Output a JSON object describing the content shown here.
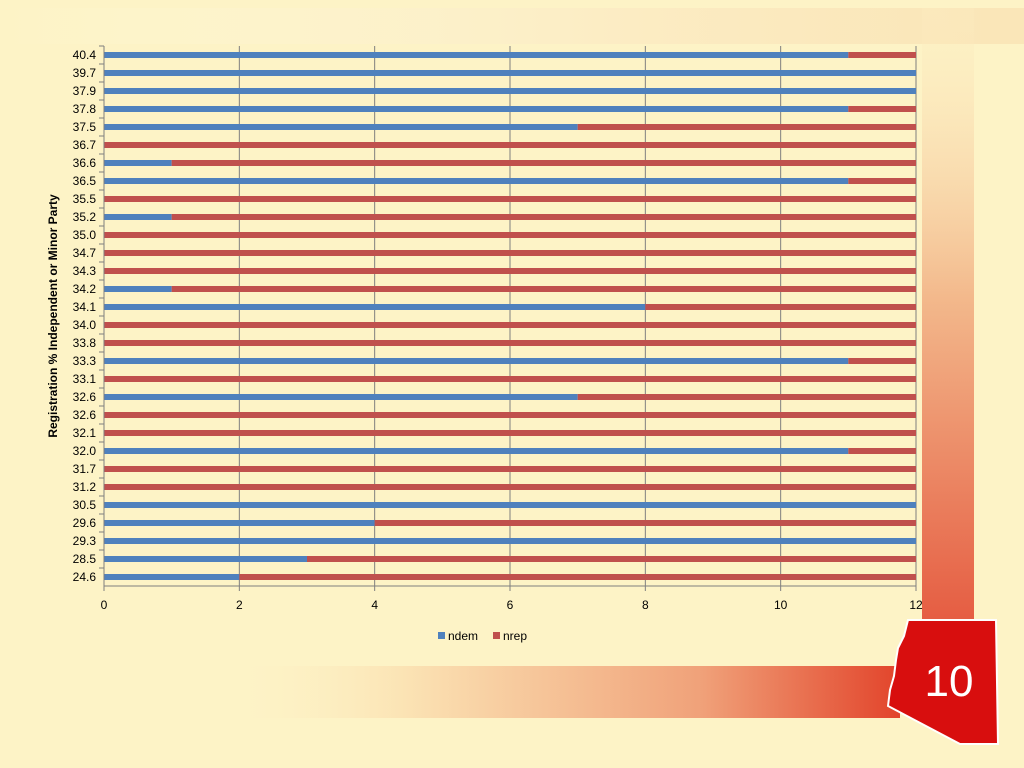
{
  "slide": {
    "page_number": "10",
    "colors": {
      "accent_red": "#e0341f",
      "badge_red": "#d80e0e",
      "background": "#fdf2c2"
    }
  },
  "chart_data": {
    "type": "bar",
    "orientation": "horizontal",
    "stacked": true,
    "ylabel": "Registration % Independent or Minor Party",
    "categories": [
      "40.4",
      "39.7",
      "37.9",
      "37.8",
      "37.5",
      "36.7",
      "36.6",
      "36.5",
      "35.5",
      "35.2",
      "35.0",
      "34.7",
      "34.3",
      "34.2",
      "34.1",
      "34.0",
      "33.8",
      "33.3",
      "33.1",
      "32.6",
      "32.6",
      "32.1",
      "32.0",
      "31.7",
      "31.2",
      "30.5",
      "29.6",
      "29.3",
      "28.5",
      "24.6"
    ],
    "series": [
      {
        "name": "ndem",
        "color": "#4f81bd",
        "values": [
          11,
          12,
          12,
          11,
          7,
          0,
          1,
          11,
          0,
          1,
          0,
          0,
          0,
          1,
          8,
          0,
          0,
          11,
          0,
          7,
          0,
          0,
          11,
          0,
          0,
          12,
          4,
          12,
          3,
          2
        ]
      },
      {
        "name": "nrep",
        "color": "#c0504d",
        "values": [
          1,
          0,
          0,
          1,
          5,
          12,
          11,
          1,
          12,
          11,
          12,
          12,
          12,
          11,
          4,
          12,
          12,
          1,
          12,
          5,
          12,
          12,
          1,
          12,
          12,
          0,
          8,
          0,
          9,
          10
        ]
      }
    ],
    "xlim": [
      0,
      12
    ],
    "xticks": [
      "0",
      "2",
      "4",
      "6",
      "8",
      "10",
      "12"
    ],
    "grid": true,
    "legend": "bottom"
  }
}
